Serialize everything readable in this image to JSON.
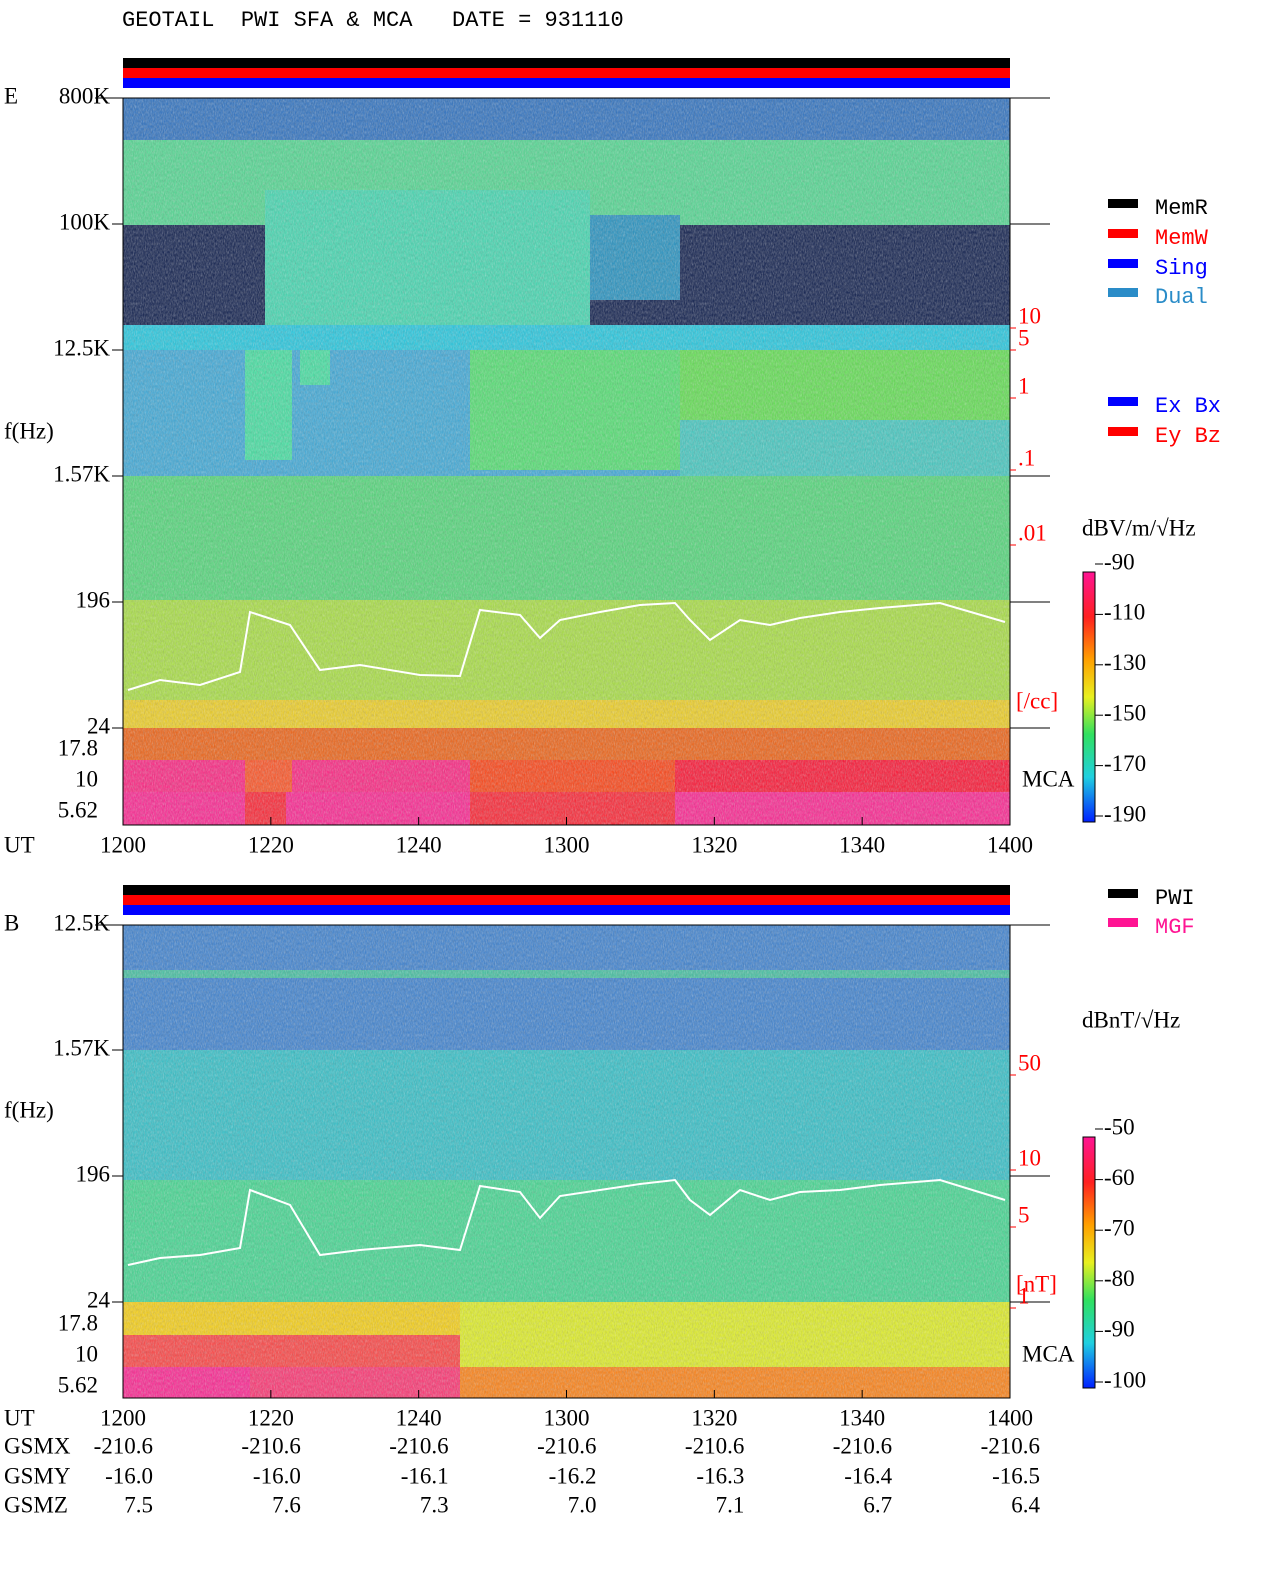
{
  "title": "GEOTAIL  PWI SFA & MCA   DATE = 931110",
  "panels": [
    {
      "component": "E",
      "y_label": "f(Hz)",
      "freq_ticks": [
        "800K",
        "100K",
        "12.5K",
        "1.57K",
        "196",
        "24"
      ],
      "mca_ticks": [
        "17.8",
        "10",
        "5.62"
      ],
      "time_label": "UT",
      "time_ticks": [
        "1200",
        "1220",
        "1240",
        "1300",
        "1320",
        "1340",
        "1400"
      ],
      "right_ticks": [
        "10",
        "5",
        "1",
        ".1",
        ".01"
      ],
      "right_unit": "[/cc]",
      "mca_label": "MCA",
      "legend": [
        {
          "label": "MemR",
          "color": "#000000"
        },
        {
          "label": "MemW",
          "color": "#ff0000"
        },
        {
          "label": "Sing",
          "color": "#0000ff"
        },
        {
          "label": "Dual",
          "color": "#2a8cc8"
        }
      ],
      "legend2": [
        {
          "label": "Ex Bx",
          "color": "#0000ff"
        },
        {
          "label": "Ey Bz",
          "color": "#ff0000"
        }
      ],
      "colorbar": {
        "unit": "dBV/m/√Hz",
        "ticks": [
          "-90",
          "-110",
          "-130",
          "-150",
          "-170",
          "-190"
        ]
      }
    },
    {
      "component": "B",
      "y_label": "f(Hz)",
      "freq_ticks": [
        "12.5K",
        "1.57K",
        "196",
        "24"
      ],
      "mca_ticks": [
        "17.8",
        "10",
        "5.62"
      ],
      "time_label": "UT",
      "time_ticks": [
        "1200",
        "1220",
        "1240",
        "1300",
        "1320",
        "1340",
        "1400"
      ],
      "right_ticks": [
        "50",
        "10",
        "5",
        "1"
      ],
      "right_unit": "[nT]",
      "mca_label": "MCA",
      "legend": [
        {
          "label": "PWI",
          "color": "#000000"
        },
        {
          "label": "MGF",
          "color": "#ff1493"
        }
      ],
      "colorbar": {
        "unit": "dBnT/√Hz",
        "ticks": [
          "-50",
          "-60",
          "-70",
          "-80",
          "-90",
          "-100"
        ]
      }
    }
  ],
  "ephemeris": {
    "rows": [
      {
        "label": "GSMX",
        "values": [
          "-210.6",
          "-210.6",
          "-210.6",
          "-210.6",
          "-210.6",
          "-210.6",
          "-210.6"
        ]
      },
      {
        "label": "GSMY",
        "values": [
          "-16.0",
          "-16.0",
          "-16.1",
          "-16.2",
          "-16.3",
          "-16.4",
          "-16.5"
        ]
      },
      {
        "label": "GSMZ",
        "values": [
          "7.5",
          "7.6",
          "7.3",
          "7.0",
          "7.1",
          "6.7",
          "6.4"
        ]
      }
    ]
  }
}
